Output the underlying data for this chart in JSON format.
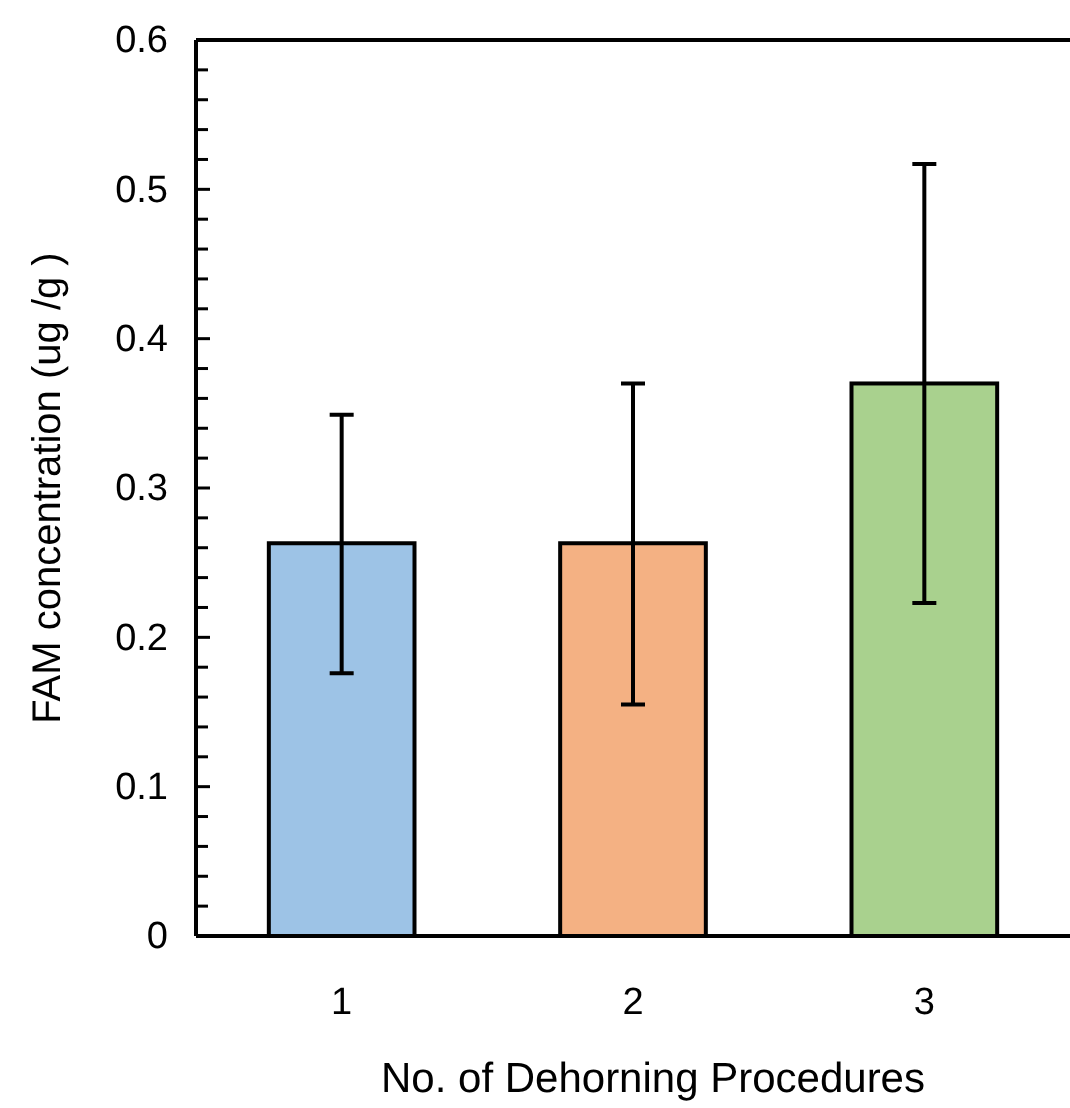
{
  "chart_data": {
    "type": "bar",
    "categories": [
      "1",
      "2",
      "3"
    ],
    "xlabel": "No. of Dehorning Procedures",
    "ylabel": "FAM concentration (ug /g )",
    "values": [
      0.263,
      0.263,
      0.37
    ],
    "colors": [
      "#9dc3e6",
      "#f4b183",
      "#a9d18e"
    ],
    "errors": [
      [
        0.176,
        0.349
      ],
      [
        0.155,
        0.37
      ],
      [
        0.223,
        0.517
      ]
    ],
    "ylim": [
      0,
      0.6
    ],
    "yticks": [
      {
        "value": 0,
        "label": "0"
      },
      0.1,
      0.2,
      0.3,
      0.4,
      0.5,
      0.6
    ],
    "grid": false
  }
}
